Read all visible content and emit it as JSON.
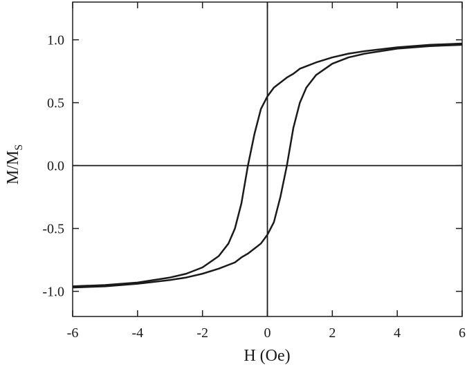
{
  "chart_data": {
    "type": "line",
    "xlabel": "H (Oe)",
    "ylabel": {
      "main": "M/M",
      "sub": "S"
    },
    "x": [
      -6,
      -5,
      -4,
      -3,
      -2.5,
      -2,
      -1.5,
      -1.2,
      -1,
      -0.8,
      -0.6,
      -0.4,
      -0.2,
      0,
      0.2,
      0.4,
      0.6,
      0.8,
      1,
      1.2,
      1.5,
      2,
      2.5,
      3,
      4,
      5,
      6
    ],
    "series": [
      {
        "color": "#1a1a1a",
        "values": [
          -0.96,
          -0.95,
          -0.93,
          -0.89,
          -0.86,
          -0.81,
          -0.72,
          -0.62,
          -0.5,
          -0.3,
          0.0,
          0.25,
          0.45,
          0.55,
          0.62,
          0.66,
          0.7,
          0.73,
          0.77,
          0.79,
          0.82,
          0.86,
          0.89,
          0.91,
          0.94,
          0.96,
          0.97
        ]
      },
      {
        "color": "#1a1a1a",
        "values": [
          -0.97,
          -0.96,
          -0.94,
          -0.91,
          -0.89,
          -0.86,
          -0.82,
          -0.79,
          -0.77,
          -0.73,
          -0.7,
          -0.66,
          -0.62,
          -0.55,
          -0.45,
          -0.25,
          0.0,
          0.3,
          0.5,
          0.62,
          0.72,
          0.81,
          0.86,
          0.89,
          0.93,
          0.95,
          0.96
        ]
      }
    ],
    "xlim": [
      -6,
      6
    ],
    "xticks": [
      -6,
      -4,
      -2,
      0,
      2,
      4,
      6
    ],
    "ylim": [
      -1.2,
      1.3
    ],
    "yticks": [
      {
        "value": -1,
        "label": "-1.0"
      },
      -0.5,
      {
        "value": 0,
        "label": "0.0"
      },
      0.5,
      {
        "value": 1,
        "label": "1.0"
      }
    ],
    "zero_lines": true
  }
}
